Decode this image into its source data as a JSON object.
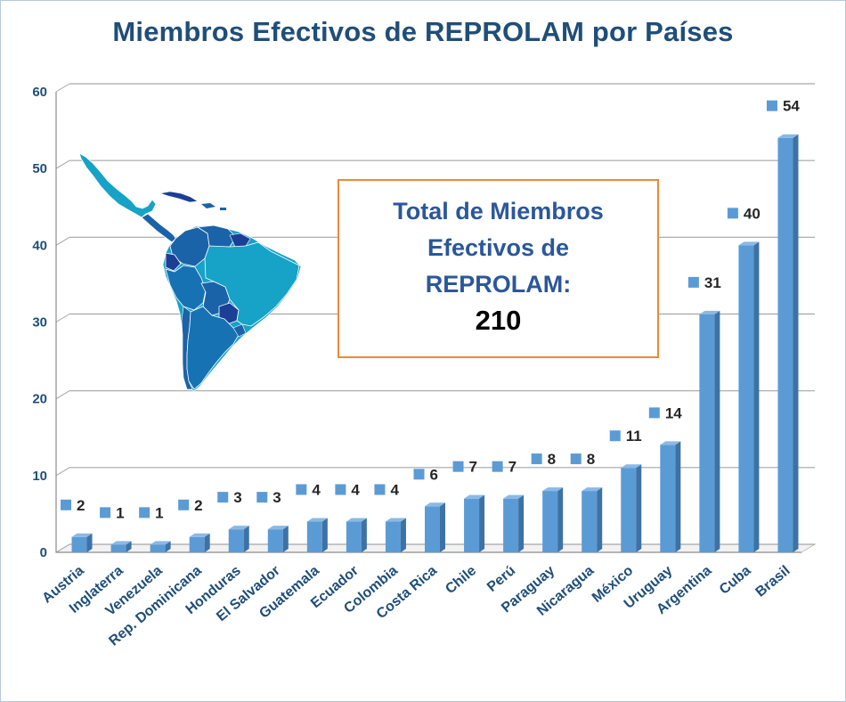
{
  "chart_data": {
    "type": "bar",
    "title": "Miembros  Efectivos de REPROLAM por Países",
    "categories": [
      "Austria",
      "Inglaterra",
      "Venezuela",
      "Rep. Dominicana",
      "Honduras",
      "El Salvador",
      "Guatemala",
      "Ecuador",
      "Colombia",
      "Costa Rica",
      "Chile",
      "Perú",
      "Paraguay",
      "Nicaragua",
      "México",
      "Uruguay",
      "Argentina",
      "Cuba",
      "Brasil"
    ],
    "values": [
      2,
      1,
      1,
      2,
      3,
      3,
      4,
      4,
      4,
      6,
      7,
      7,
      8,
      8,
      11,
      14,
      31,
      40,
      54
    ],
    "ylim": [
      0,
      60
    ],
    "yticks": [
      0,
      10,
      20,
      30,
      40,
      50,
      60
    ],
    "grid": true,
    "data_labels": true,
    "colors": {
      "bar": "#5b9bd5",
      "bar_side": "#3d72a6",
      "bar_top": "#8ab9e6",
      "marker": "#5b9bd5",
      "title": "#1f4e79",
      "axis_text": "#1f4e79",
      "grid": "#a6a6a6"
    }
  },
  "total_box": {
    "label": "Total de Miembros Efectivos de REPROLAM:",
    "value": "210"
  },
  "map_image": "latin-america-map"
}
